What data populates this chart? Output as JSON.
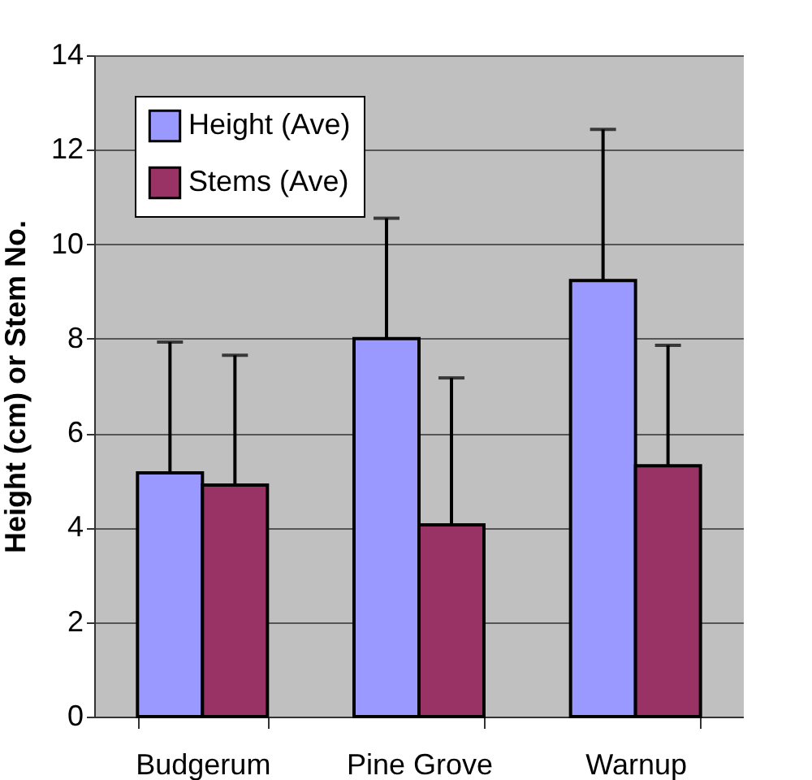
{
  "chart_data": {
    "type": "bar",
    "ylabel": "Height (cm) or Stem No.",
    "categories": [
      "Budgerum",
      "Pine Grove",
      "Warnup"
    ],
    "series": [
      {
        "name": "Height (Ave)",
        "color": "#9999ff",
        "values": [
          5.16,
          8.0,
          9.23
        ],
        "errors": [
          [
            5.16,
            7.93
          ],
          [
            8.0,
            10.55
          ],
          [
            9.23,
            12.43
          ]
        ]
      },
      {
        "name": "Stems (Ave)",
        "color": "#993366",
        "values": [
          4.9,
          4.06,
          5.31
        ],
        "errors": [
          [
            4.9,
            7.65
          ],
          [
            4.06,
            7.17
          ],
          [
            5.31,
            7.86
          ]
        ]
      }
    ],
    "ylim": [
      0,
      14
    ],
    "yticks": [
      0,
      2,
      4,
      6,
      8,
      10,
      12,
      14
    ],
    "grid": "y",
    "legend": "top left"
  }
}
